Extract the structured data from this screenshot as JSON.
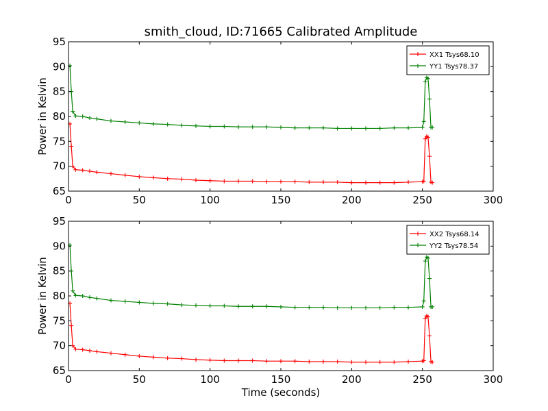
{
  "figure": {
    "title": "smith_cloud, ID:71665 Calibrated Amplitude"
  },
  "chart_data": [
    {
      "type": "line",
      "title": "smith_cloud, ID:71665 Calibrated Amplitude",
      "xlabel": "",
      "ylabel": "Power in Kelvin",
      "xlim": [
        0,
        300
      ],
      "ylim": [
        65,
        95
      ],
      "xticks": [
        0,
        50,
        100,
        150,
        200,
        250,
        300
      ],
      "yticks": [
        65,
        70,
        75,
        80,
        85,
        90,
        95
      ],
      "grid": false,
      "legend_position": "top-right",
      "marker": "+",
      "series": [
        {
          "name": "XX1 Tsys68.10",
          "color": "#ff0000",
          "x": [
            1,
            2,
            3,
            5,
            10,
            15,
            20,
            30,
            40,
            50,
            60,
            70,
            80,
            90,
            100,
            110,
            120,
            130,
            140,
            150,
            160,
            170,
            180,
            190,
            200,
            210,
            220,
            230,
            240,
            250,
            251,
            252,
            253,
            254,
            255,
            256,
            257
          ],
          "y": [
            78.5,
            74,
            70,
            69.3,
            69.2,
            69,
            68.8,
            68.5,
            68.2,
            67.9,
            67.7,
            67.5,
            67.4,
            67.2,
            67.1,
            67.0,
            67.0,
            67.0,
            66.9,
            66.9,
            66.9,
            66.8,
            66.8,
            66.8,
            66.7,
            66.7,
            66.7,
            66.7,
            66.8,
            66.9,
            67,
            75.5,
            76,
            75.8,
            72,
            66.8,
            66.7
          ]
        },
        {
          "name": "YY1 Tsys78.37",
          "color": "#008000",
          "x": [
            1,
            2,
            3,
            5,
            10,
            15,
            20,
            30,
            40,
            50,
            60,
            70,
            80,
            90,
            100,
            110,
            120,
            130,
            140,
            150,
            160,
            170,
            180,
            190,
            200,
            210,
            220,
            230,
            240,
            250,
            251,
            252,
            253,
            254,
            255,
            256,
            257
          ],
          "y": [
            90.2,
            85,
            81,
            80.1,
            80,
            79.7,
            79.5,
            79.1,
            78.9,
            78.7,
            78.5,
            78.4,
            78.2,
            78.1,
            78.0,
            78.0,
            77.9,
            77.9,
            77.9,
            77.8,
            77.7,
            77.7,
            77.7,
            77.6,
            77.6,
            77.6,
            77.6,
            77.7,
            77.7,
            77.8,
            79,
            87,
            87.8,
            87.6,
            83.5,
            77.8,
            77.8
          ]
        }
      ]
    },
    {
      "type": "line",
      "title": "",
      "xlabel": "Time (seconds)",
      "ylabel": "Power in Kelvin",
      "xlim": [
        0,
        300
      ],
      "ylim": [
        65,
        95
      ],
      "xticks": [
        0,
        50,
        100,
        150,
        200,
        250,
        300
      ],
      "yticks": [
        65,
        70,
        75,
        80,
        85,
        90,
        95
      ],
      "grid": false,
      "legend_position": "top-right",
      "marker": "+",
      "series": [
        {
          "name": "XX2 Tsys68.14",
          "color": "#ff0000",
          "x": [
            1,
            2,
            3,
            5,
            10,
            15,
            20,
            30,
            40,
            50,
            60,
            70,
            80,
            90,
            100,
            110,
            120,
            130,
            140,
            150,
            160,
            170,
            180,
            190,
            200,
            210,
            220,
            230,
            240,
            250,
            251,
            252,
            253,
            254,
            255,
            256,
            257
          ],
          "y": [
            78.5,
            74,
            70,
            69.3,
            69.2,
            69,
            68.8,
            68.5,
            68.2,
            67.9,
            67.7,
            67.5,
            67.4,
            67.2,
            67.1,
            67.0,
            67.0,
            67.0,
            66.9,
            66.9,
            66.9,
            66.8,
            66.8,
            66.8,
            66.7,
            66.7,
            66.7,
            66.7,
            66.8,
            66.9,
            67,
            75.5,
            76,
            75.8,
            72,
            66.8,
            66.7
          ]
        },
        {
          "name": "YY2 Tsys78.54",
          "color": "#008000",
          "x": [
            1,
            2,
            3,
            5,
            10,
            15,
            20,
            30,
            40,
            50,
            60,
            70,
            80,
            90,
            100,
            110,
            120,
            130,
            140,
            150,
            160,
            170,
            180,
            190,
            200,
            210,
            220,
            230,
            240,
            250,
            251,
            252,
            253,
            254,
            255,
            256,
            257
          ],
          "y": [
            90.2,
            85,
            81,
            80.1,
            80,
            79.7,
            79.5,
            79.1,
            78.9,
            78.7,
            78.5,
            78.4,
            78.2,
            78.1,
            78.0,
            78.0,
            77.9,
            77.9,
            77.9,
            77.8,
            77.7,
            77.7,
            77.7,
            77.6,
            77.6,
            77.6,
            77.6,
            77.7,
            77.7,
            77.8,
            79,
            87,
            87.8,
            87.6,
            83.5,
            77.8,
            77.8
          ]
        }
      ]
    }
  ]
}
